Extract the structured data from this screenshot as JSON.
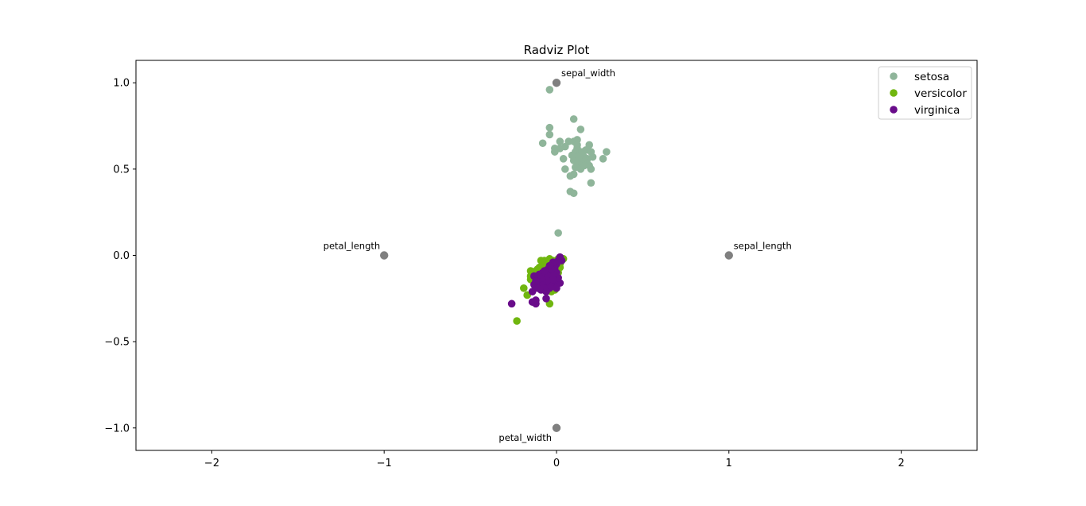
{
  "chart_data": {
    "type": "scatter",
    "title": "Radviz Plot",
    "xlabel": "",
    "ylabel": "",
    "xlim": [
      -2.44,
      2.44
    ],
    "ylim": [
      -1.13,
      1.13
    ],
    "xticks": [
      -2,
      -1,
      0,
      1,
      2
    ],
    "yticks": [
      -1.0,
      -0.5,
      0.0,
      0.5,
      1.0
    ],
    "xtick_labels": [
      "−2",
      "−1",
      "0",
      "1",
      "2"
    ],
    "ytick_labels": [
      "−1.0",
      "−0.5",
      "0.0",
      "0.5",
      "1.0"
    ],
    "grid": false,
    "legend_position": "top-right",
    "anchors": [
      {
        "name": "sepal_length",
        "x": 1.0,
        "y": 0.0,
        "label_pos": "upper-right"
      },
      {
        "name": "sepal_width",
        "x": 0.0,
        "y": 1.0,
        "label_pos": "upper-right"
      },
      {
        "name": "petal_length",
        "x": -1.0,
        "y": 0.0,
        "label_pos": "upper-left"
      },
      {
        "name": "petal_width",
        "x": 0.0,
        "y": -1.0,
        "label_pos": "lower-left"
      }
    ],
    "anchor_color": "#808080",
    "series": [
      {
        "name": "setosa",
        "color": "#8fb59a",
        "points": [
          [
            -0.04,
            0.96
          ],
          [
            0.1,
            0.79
          ],
          [
            -0.04,
            0.74
          ],
          [
            0.14,
            0.73
          ],
          [
            -0.04,
            0.7
          ],
          [
            0.1,
            0.66
          ],
          [
            0.12,
            0.67
          ],
          [
            0.02,
            0.66
          ],
          [
            -0.08,
            0.65
          ],
          [
            0.07,
            0.66
          ],
          [
            0.19,
            0.64
          ],
          [
            -0.01,
            0.62
          ],
          [
            0.02,
            0.62
          ],
          [
            0.05,
            0.63
          ],
          [
            0.12,
            0.62
          ],
          [
            0.17,
            0.61
          ],
          [
            -0.01,
            0.6
          ],
          [
            0.11,
            0.6
          ],
          [
            0.14,
            0.59
          ],
          [
            0.2,
            0.6
          ],
          [
            0.29,
            0.6
          ],
          [
            0.13,
            0.58
          ],
          [
            0.16,
            0.57
          ],
          [
            0.04,
            0.56
          ],
          [
            0.1,
            0.55
          ],
          [
            0.14,
            0.56
          ],
          [
            0.18,
            0.56
          ],
          [
            0.21,
            0.57
          ],
          [
            0.27,
            0.56
          ],
          [
            0.12,
            0.53
          ],
          [
            0.15,
            0.53
          ],
          [
            0.17,
            0.54
          ],
          [
            0.19,
            0.52
          ],
          [
            0.11,
            0.51
          ],
          [
            0.14,
            0.5
          ],
          [
            0.2,
            0.5
          ],
          [
            0.05,
            0.5
          ],
          [
            0.1,
            0.47
          ],
          [
            0.08,
            0.46
          ],
          [
            0.2,
            0.42
          ],
          [
            0.08,
            0.37
          ],
          [
            0.1,
            0.36
          ],
          [
            0.01,
            0.13
          ],
          [
            0.16,
            0.55
          ],
          [
            0.13,
            0.57
          ],
          [
            0.18,
            0.53
          ],
          [
            0.15,
            0.6
          ],
          [
            0.12,
            0.64
          ],
          [
            0.16,
            0.52
          ],
          [
            0.09,
            0.58
          ]
        ]
      },
      {
        "name": "versicolor",
        "color": "#70b60f",
        "points": [
          [
            -0.23,
            -0.38
          ],
          [
            -0.04,
            -0.28
          ],
          [
            -0.19,
            -0.19
          ],
          [
            -0.17,
            -0.23
          ],
          [
            -0.15,
            -0.09
          ],
          [
            -0.14,
            -0.11
          ],
          [
            -0.15,
            -0.14
          ],
          [
            -0.12,
            -0.09
          ],
          [
            -0.1,
            -0.07
          ],
          [
            -0.09,
            -0.11
          ],
          [
            -0.08,
            -0.05
          ],
          [
            -0.07,
            -0.03
          ],
          [
            -0.06,
            -0.04
          ],
          [
            -0.05,
            -0.03
          ],
          [
            -0.04,
            -0.02
          ],
          [
            -0.06,
            -0.06
          ],
          [
            -0.03,
            -0.05
          ],
          [
            -0.02,
            -0.03
          ],
          [
            -0.01,
            -0.04
          ],
          [
            0.0,
            -0.07
          ],
          [
            0.01,
            -0.05
          ],
          [
            0.02,
            -0.05
          ],
          [
            0.04,
            -0.02
          ],
          [
            0.03,
            -0.03
          ],
          [
            0.01,
            -0.1
          ],
          [
            -0.03,
            -0.08
          ],
          [
            -0.06,
            -0.08
          ],
          [
            -0.09,
            -0.14
          ],
          [
            -0.11,
            -0.13
          ],
          [
            -0.13,
            -0.16
          ],
          [
            -0.1,
            -0.17
          ],
          [
            -0.08,
            -0.17
          ],
          [
            -0.06,
            -0.15
          ],
          [
            -0.04,
            -0.13
          ],
          [
            -0.02,
            -0.16
          ],
          [
            -0.01,
            -0.2
          ],
          [
            -0.03,
            -0.21
          ],
          [
            -0.07,
            -0.2
          ],
          [
            -0.05,
            -0.07
          ],
          [
            0.0,
            -0.09
          ],
          [
            0.02,
            -0.07
          ],
          [
            -0.08,
            -0.09
          ],
          [
            -0.12,
            -0.11
          ],
          [
            -0.02,
            -0.11
          ],
          [
            -0.04,
            -0.1
          ],
          [
            0.01,
            -0.02
          ],
          [
            -0.05,
            -0.05
          ],
          [
            -0.09,
            -0.03
          ],
          [
            -0.11,
            -0.08
          ],
          [
            -0.15,
            -0.12
          ]
        ]
      },
      {
        "name": "virginica",
        "color": "#690c8a",
        "points": [
          [
            -0.26,
            -0.28
          ],
          [
            -0.12,
            -0.28
          ],
          [
            -0.14,
            -0.27
          ],
          [
            -0.12,
            -0.26
          ],
          [
            -0.06,
            -0.25
          ],
          [
            -0.14,
            -0.21
          ],
          [
            -0.09,
            -0.2
          ],
          [
            -0.05,
            -0.19
          ],
          [
            -0.13,
            -0.17
          ],
          [
            -0.1,
            -0.16
          ],
          [
            -0.08,
            -0.17
          ],
          [
            -0.06,
            -0.18
          ],
          [
            -0.04,
            -0.19
          ],
          [
            -0.02,
            -0.17
          ],
          [
            0.02,
            -0.16
          ],
          [
            -0.11,
            -0.14
          ],
          [
            -0.07,
            -0.14
          ],
          [
            -0.05,
            -0.15
          ],
          [
            -0.03,
            -0.13
          ],
          [
            -0.01,
            -0.14
          ],
          [
            0.01,
            -0.13
          ],
          [
            -0.13,
            -0.12
          ],
          [
            -0.09,
            -0.12
          ],
          [
            -0.06,
            -0.11
          ],
          [
            -0.04,
            -0.1
          ],
          [
            -0.02,
            -0.11
          ],
          [
            0.0,
            -0.1
          ],
          [
            -0.08,
            -0.1
          ],
          [
            -0.05,
            -0.08
          ],
          [
            -0.03,
            -0.08
          ],
          [
            -0.01,
            -0.07
          ],
          [
            0.0,
            -0.05
          ],
          [
            -0.02,
            -0.04
          ],
          [
            -0.04,
            -0.06
          ],
          [
            0.01,
            -0.03
          ],
          [
            0.02,
            -0.01
          ],
          [
            0.03,
            -0.03
          ],
          [
            -0.07,
            -0.15
          ],
          [
            -0.09,
            -0.18
          ],
          [
            -0.11,
            -0.19
          ],
          [
            -0.06,
            -0.21
          ],
          [
            -0.04,
            -0.16
          ],
          [
            -0.08,
            -0.13
          ],
          [
            -0.1,
            -0.11
          ],
          [
            -0.12,
            -0.15
          ],
          [
            -0.03,
            -0.18
          ],
          [
            0.0,
            -0.19
          ],
          [
            -0.05,
            -0.12
          ],
          [
            -0.07,
            -0.09
          ],
          [
            -0.02,
            -0.14
          ]
        ]
      }
    ]
  }
}
